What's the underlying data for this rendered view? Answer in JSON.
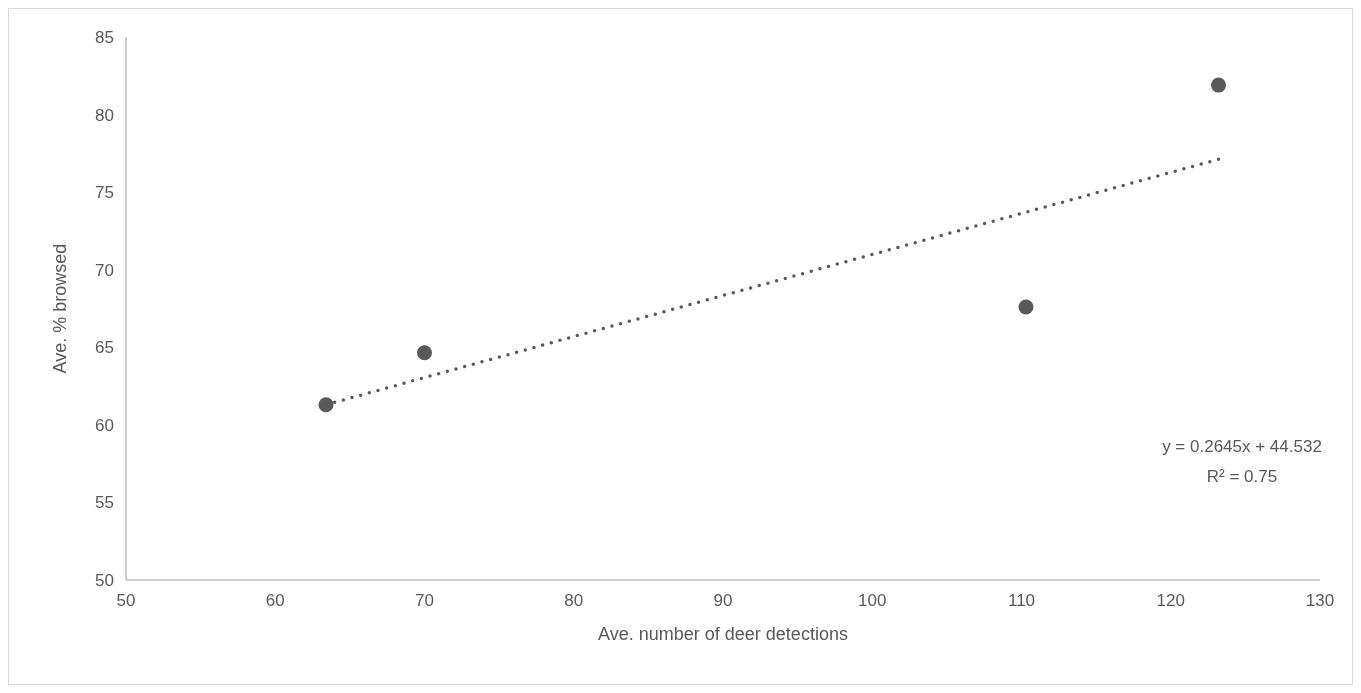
{
  "chart_data": {
    "type": "scatter",
    "xlabel": "Ave. number of deer detections",
    "ylabel": "Ave. % browsed",
    "xlim": [
      50,
      130
    ],
    "xticks": [
      50,
      60,
      70,
      80,
      90,
      100,
      110,
      120,
      130
    ],
    "ylim": [
      50,
      85
    ],
    "yticks": [
      50,
      55,
      60,
      65,
      70,
      75,
      80,
      85
    ],
    "grid": false,
    "series": [
      {
        "color": "#595959",
        "marker": "circle",
        "x": [
          63.4,
          70.0,
          110.3,
          123.2
        ],
        "values": [
          61.3,
          64.65,
          67.6,
          81.9
        ]
      },
      {
        "type": "line",
        "color": "#595959",
        "marker": "none",
        "line_style": "dotted",
        "x": [
          63.4,
          123.2
        ],
        "values": [
          61.3,
          77.12
        ]
      }
    ],
    "annotations": [
      "y = 0.2645x + 44.532",
      "R² = 0.75"
    ]
  }
}
